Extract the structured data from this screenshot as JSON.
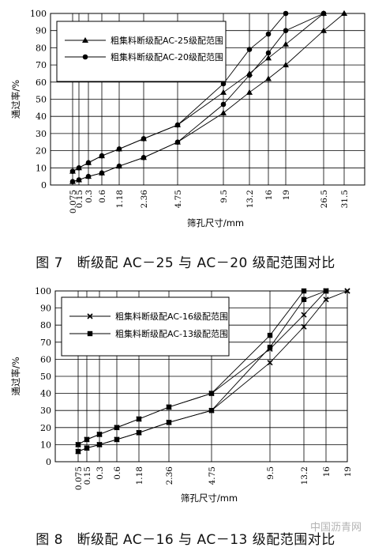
{
  "chart_data": [
    {
      "type": "line",
      "xlabel": "筛孔尺寸/mm",
      "ylabel": "通过率/%",
      "ylim": [
        0,
        100
      ],
      "yticks": [
        0,
        10,
        20,
        30,
        40,
        50,
        60,
        70,
        80,
        90,
        100
      ],
      "grid": true,
      "legend_placement": "top-left",
      "x_ticks": [
        "0.075",
        "0.15",
        "0.3",
        "0.6",
        "1.18",
        "2.36",
        "4.75",
        "9.5",
        "13.2",
        "16",
        "19",
        "26.5",
        "31.5"
      ],
      "series": [
        {
          "name": "粗集料断级配AC-25级配范围",
          "marker": "triangle",
          "kind": "upper",
          "x": [
            "0.075",
            "0.15",
            "0.3",
            "0.6",
            "1.18",
            "2.36",
            "4.75",
            "9.5",
            "13.2",
            "16",
            "19",
            "26.5",
            "31.5"
          ],
          "values": [
            8,
            10,
            13,
            17,
            21,
            27,
            35,
            54,
            65,
            74,
            82,
            100,
            100
          ]
        },
        {
          "name": "粗集料断级配AC-25级配范围",
          "marker": "triangle",
          "kind": "lower",
          "x": [
            "0.075",
            "0.15",
            "0.3",
            "0.6",
            "1.18",
            "2.36",
            "4.75",
            "9.5",
            "13.2",
            "16",
            "19",
            "26.5",
            "31.5"
          ],
          "values": [
            2,
            3,
            5,
            7,
            11,
            16,
            25,
            42,
            54,
            62,
            70,
            90,
            100
          ]
        },
        {
          "name": "粗集料断级配AC-20级配范围",
          "marker": "circle",
          "kind": "upper",
          "x": [
            "0.075",
            "0.15",
            "0.3",
            "0.6",
            "1.18",
            "2.36",
            "4.75",
            "9.5",
            "13.2",
            "16",
            "19",
            "26.5"
          ],
          "values": [
            8,
            10,
            13,
            17,
            21,
            27,
            35,
            59,
            79,
            88,
            100,
            100
          ]
        },
        {
          "name": "粗集料断级配AC-20级配范围",
          "marker": "circle",
          "kind": "lower",
          "x": [
            "0.075",
            "0.15",
            "0.3",
            "0.6",
            "1.18",
            "2.36",
            "4.75",
            "9.5",
            "13.2",
            "16",
            "19",
            "26.5"
          ],
          "values": [
            2,
            3,
            5,
            7,
            11,
            16,
            25,
            47,
            64,
            77,
            90,
            100
          ]
        }
      ],
      "legend": [
        "粗集料断级配AC-25级配范围",
        "粗集料断级配AC-20级配范围"
      ]
    },
    {
      "type": "line",
      "xlabel": "筛孔尺寸/mm",
      "ylabel": "通过率/%",
      "ylim": [
        0,
        100
      ],
      "yticks": [
        0,
        10,
        20,
        30,
        40,
        50,
        60,
        70,
        80,
        90,
        100
      ],
      "grid": true,
      "legend_placement": "top-left",
      "x_ticks": [
        "0.075",
        "0.15",
        "0.3",
        "0.6",
        "1.18",
        "2.36",
        "4.75",
        "9.5",
        "13.2",
        "16",
        "19"
      ],
      "series": [
        {
          "name": "粗集料断级配AC-16级配范围",
          "marker": "x",
          "kind": "upper",
          "x": [
            "0.075",
            "0.15",
            "0.3",
            "0.6",
            "1.18",
            "2.36",
            "4.75",
            "9.5",
            "13.2",
            "16",
            "19"
          ],
          "values": [
            10,
            13,
            16,
            20,
            25,
            32,
            40,
            66,
            86,
            100,
            100
          ]
        },
        {
          "name": "粗集料断级配AC-16级配范围",
          "marker": "x",
          "kind": "lower",
          "x": [
            "0.075",
            "0.15",
            "0.3",
            "0.6",
            "1.18",
            "2.36",
            "4.75",
            "9.5",
            "13.2",
            "16",
            "19"
          ],
          "values": [
            6,
            8,
            10,
            13,
            17,
            23,
            30,
            58,
            79,
            95,
            100
          ]
        },
        {
          "name": "粗集料断级配AC-13级配范围",
          "marker": "square",
          "kind": "upper",
          "x": [
            "0.075",
            "0.15",
            "0.3",
            "0.6",
            "1.18",
            "2.36",
            "4.75",
            "9.5",
            "13.2",
            "16"
          ],
          "values": [
            10,
            13,
            16,
            20,
            25,
            32,
            40,
            74,
            100,
            100
          ]
        },
        {
          "name": "粗集料断级配AC-13级配范围",
          "marker": "square",
          "kind": "lower",
          "x": [
            "0.075",
            "0.15",
            "0.3",
            "0.6",
            "1.18",
            "2.36",
            "4.75",
            "9.5",
            "13.2",
            "16"
          ],
          "values": [
            6,
            8,
            10,
            13,
            17,
            23,
            30,
            67,
            95,
            100
          ]
        }
      ],
      "legend": [
        "粗集料断级配AC-16级配范围",
        "粗集料断级配AC-13级配范围"
      ]
    }
  ],
  "captions": {
    "fig7": "图 7　断级配 AC－25 与 AC－20 级配范围对比",
    "fig8": "图 8　断级配 AC－16 与 AC－13 级配范围对比"
  },
  "watermark": "中国沥青网"
}
